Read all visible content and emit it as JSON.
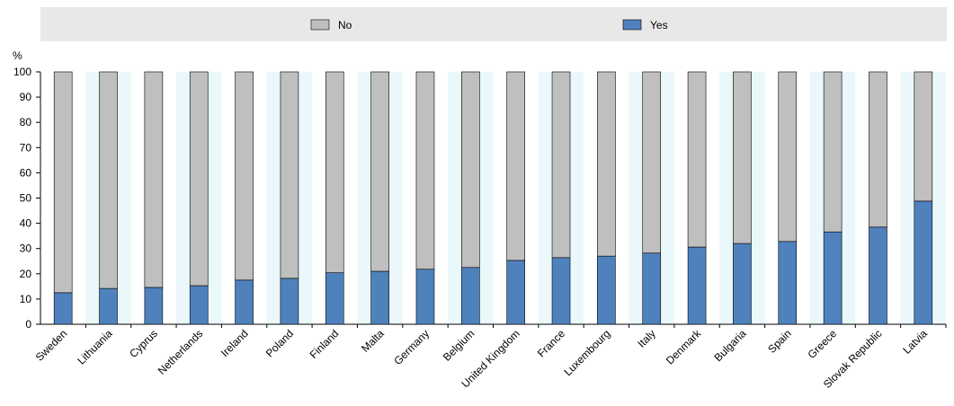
{
  "chart_data": {
    "type": "bar",
    "stacked": true,
    "ylabel": "%",
    "ylim": [
      0,
      100
    ],
    "yticks": [
      0,
      10,
      20,
      30,
      40,
      50,
      60,
      70,
      80,
      90,
      100
    ],
    "legend_position": "top",
    "categories": [
      "Sweden",
      "Lithuania",
      "Cyprus",
      "Netherlands",
      "Ireland",
      "Poland",
      "Finland",
      "Malta",
      "Germany",
      "Belgium",
      "United Kingdom",
      "France",
      "Luxembourg",
      "Italy",
      "Denmark",
      "Bulgaria",
      "Spain",
      "Greece",
      "Slovak Republic",
      "Latvia"
    ],
    "series": [
      {
        "name": "Yes",
        "color": "#4f81bd",
        "values": [
          12.5,
          14.2,
          14.6,
          15.3,
          17.5,
          18.2,
          20.4,
          21.0,
          21.8,
          22.5,
          25.3,
          26.4,
          27.0,
          28.2,
          30.6,
          32.0,
          32.8,
          36.6,
          38.5,
          48.8
        ]
      },
      {
        "name": "No",
        "color": "#bfbfbf",
        "values": [
          87.5,
          85.8,
          85.4,
          84.7,
          82.5,
          81.8,
          79.6,
          79.0,
          78.2,
          77.5,
          74.7,
          73.6,
          73.0,
          71.8,
          69.4,
          68.0,
          67.2,
          63.4,
          61.5,
          51.2
        ]
      }
    ],
    "colors": {
      "band": "#eaf8fb",
      "legend_bg": "#e8e8e8"
    }
  }
}
